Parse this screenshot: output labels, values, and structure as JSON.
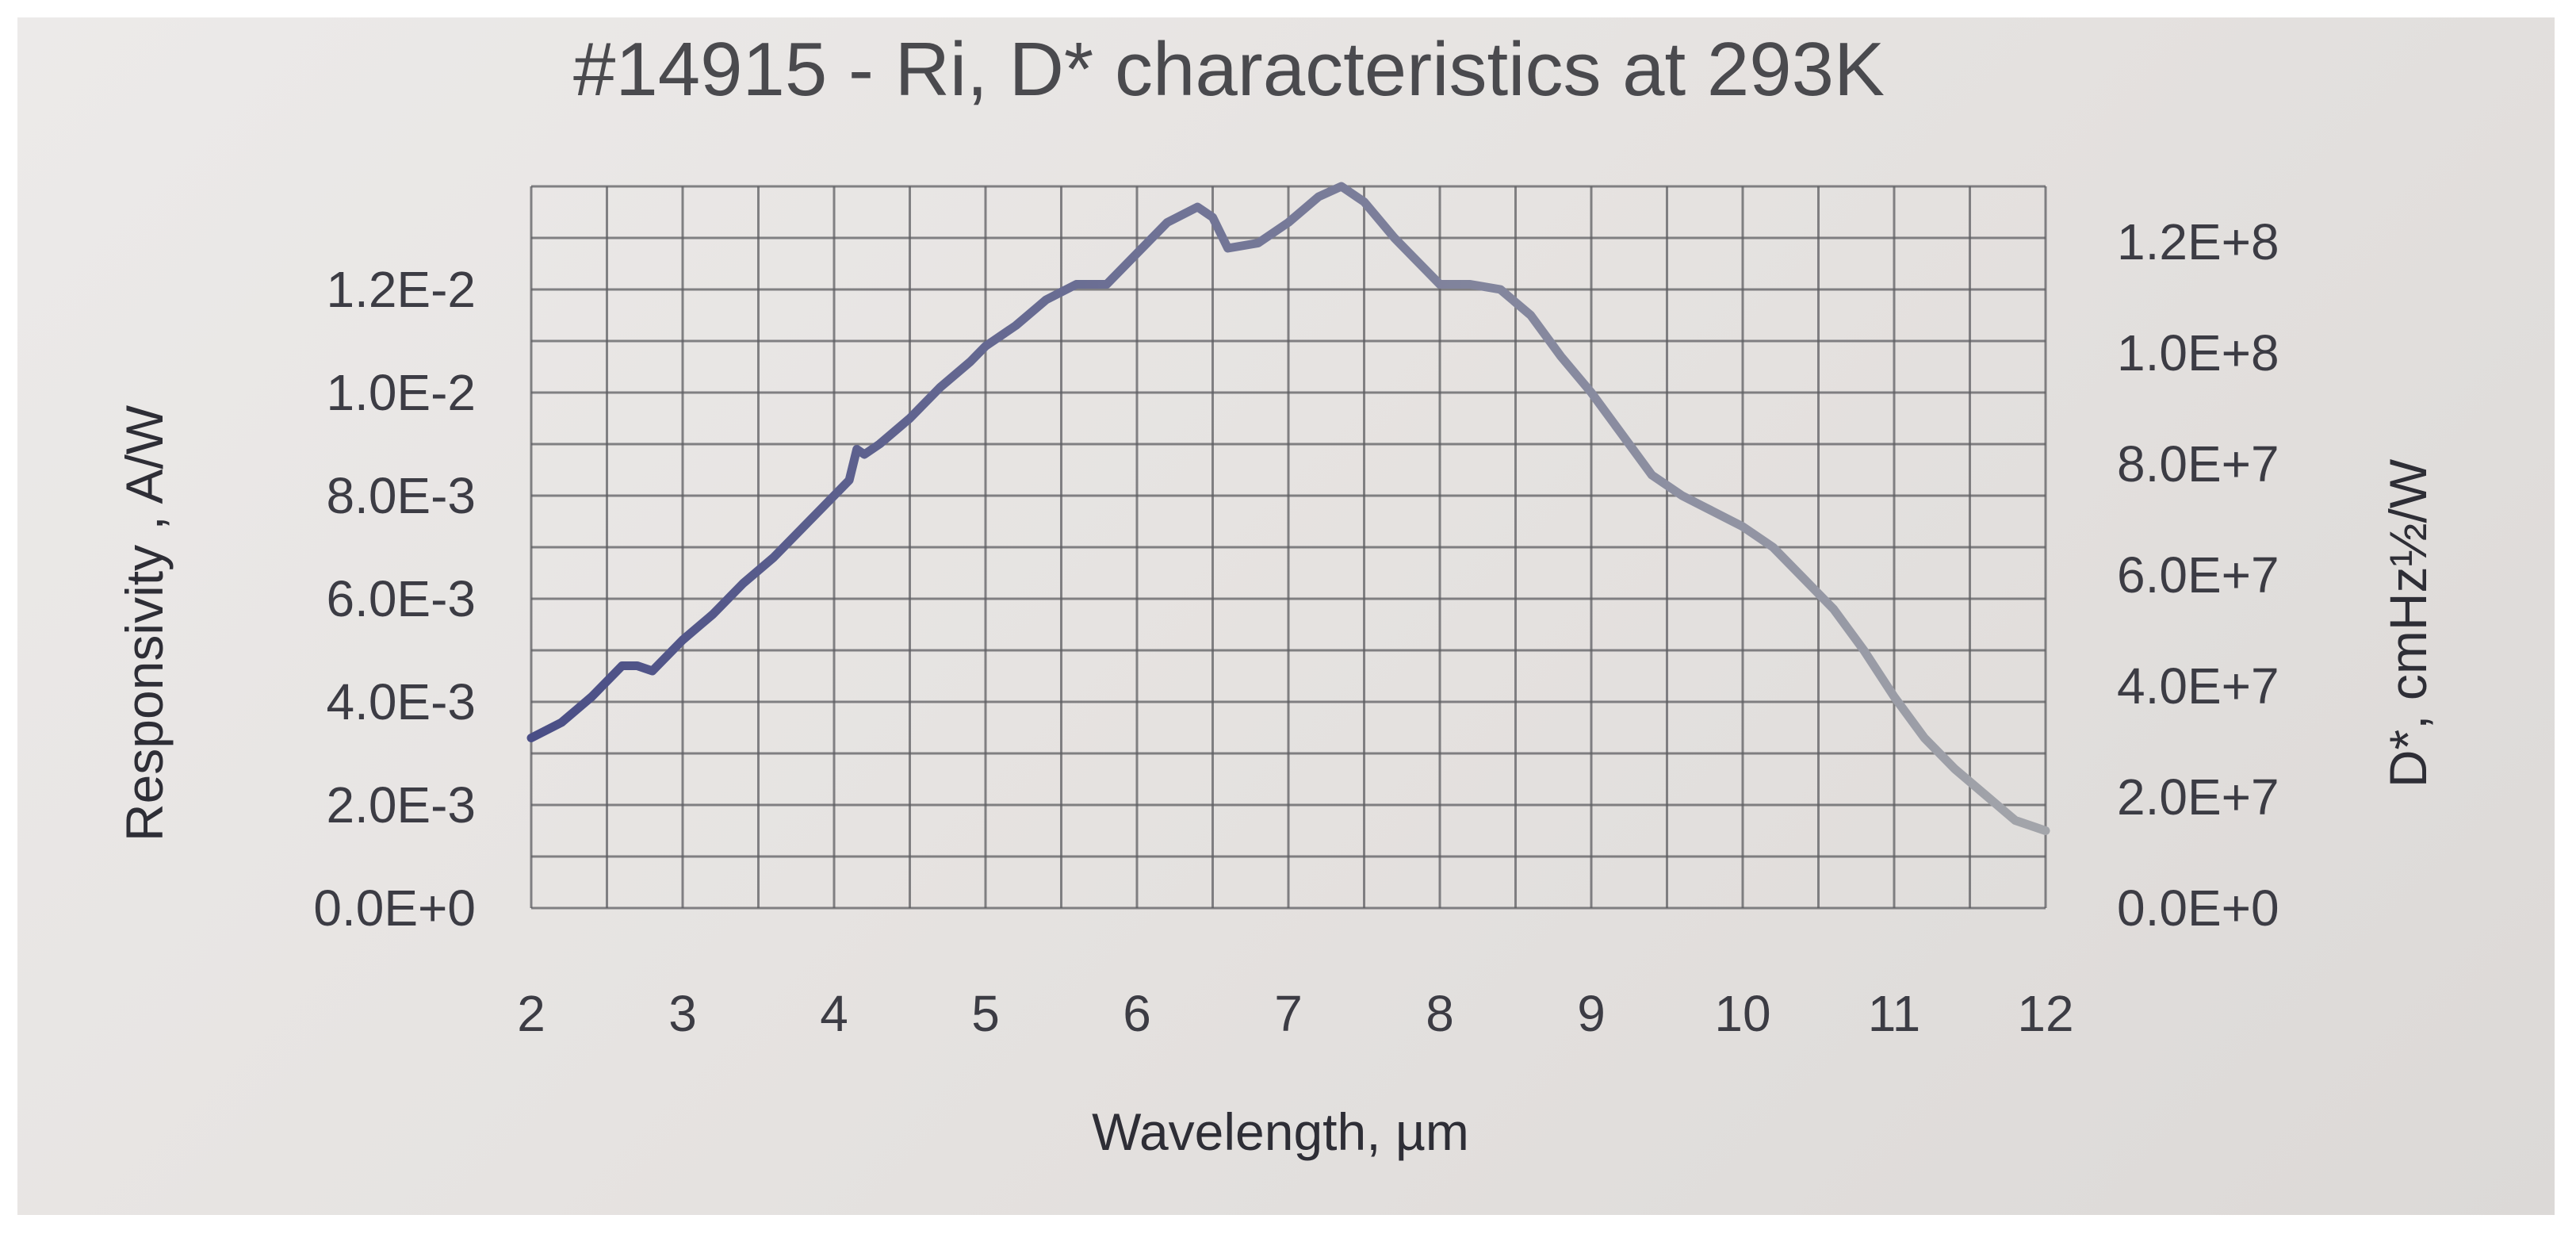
{
  "chart_data": {
    "type": "line",
    "title": "#14915 - Ri, D* characteristics at 293K",
    "xlabel": "Wavelength, µm",
    "ylabel": "Responsivity , A/W",
    "y2label": "D*, cmHz½/W",
    "xlim": [
      2,
      12
    ],
    "ylim": [
      0,
      0.014
    ],
    "y2lim": [
      0,
      130000000
    ],
    "grid": true,
    "x_ticks": [
      "2",
      "3",
      "4",
      "5",
      "6",
      "7",
      "8",
      "9",
      "10",
      "11",
      "12"
    ],
    "y_ticks": [
      "0.0E+0",
      "2.0E-3",
      "4.0E-3",
      "6.0E-3",
      "8.0E-3",
      "1.0E-2",
      "1.2E-2"
    ],
    "y2_ticks": [
      "0.0E+0",
      "2.0E+7",
      "4.0E+7",
      "6.0E+7",
      "8.0E+7",
      "1.0E+8",
      "1.2E+8"
    ],
    "series": [
      {
        "color": "#4a4e86",
        "color_end": "#a3a5aa",
        "x": [
          2.0,
          2.2,
          2.4,
          2.6,
          2.7,
          2.8,
          3.0,
          3.2,
          3.4,
          3.6,
          3.8,
          4.0,
          4.1,
          4.15,
          4.2,
          4.3,
          4.5,
          4.7,
          4.9,
          5.0,
          5.2,
          5.4,
          5.6,
          5.8,
          6.0,
          6.2,
          6.4,
          6.5,
          6.6,
          6.8,
          7.0,
          7.2,
          7.35,
          7.5,
          7.7,
          7.9,
          8.0,
          8.2,
          8.4,
          8.6,
          8.8,
          9.0,
          9.2,
          9.4,
          9.6,
          9.8,
          10.0,
          10.2,
          10.4,
          10.6,
          10.8,
          11.0,
          11.2,
          11.4,
          11.6,
          11.8,
          12.0
        ],
        "y": [
          0.0033,
          0.0036,
          0.0041,
          0.0047,
          0.0047,
          0.0046,
          0.0052,
          0.0057,
          0.0063,
          0.0068,
          0.0074,
          0.008,
          0.0083,
          0.0089,
          0.0088,
          0.009,
          0.0095,
          0.0101,
          0.0106,
          0.0109,
          0.0113,
          0.0118,
          0.0121,
          0.0121,
          0.0127,
          0.0133,
          0.0136,
          0.0134,
          0.0128,
          0.0129,
          0.0133,
          0.0138,
          0.014,
          0.0137,
          0.013,
          0.0124,
          0.0121,
          0.0121,
          0.012,
          0.0115,
          0.0107,
          0.01,
          0.0092,
          0.0084,
          0.008,
          0.0077,
          0.0074,
          0.007,
          0.0064,
          0.0058,
          0.005,
          0.0041,
          0.0033,
          0.0027,
          0.0022,
          0.0017,
          0.0015
        ]
      }
    ]
  }
}
